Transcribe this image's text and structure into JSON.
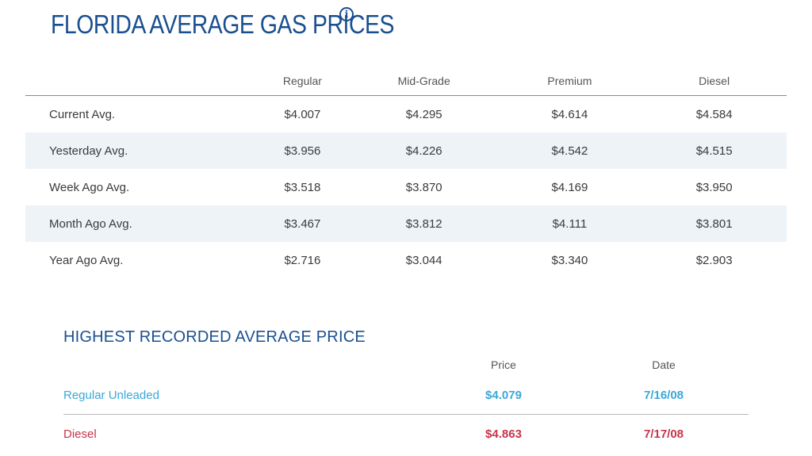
{
  "header": {
    "title": "FLORIDA AVERAGE GAS PRICES",
    "info_icon": "info-icon"
  },
  "prices_table": {
    "columns": [
      "",
      "Regular",
      "Mid-Grade",
      "Premium",
      "Diesel"
    ],
    "rows": [
      {
        "label": "Current Avg.",
        "values": [
          "$4.007",
          "$4.295",
          "$4.614",
          "$4.584"
        ]
      },
      {
        "label": "Yesterday Avg.",
        "values": [
          "$3.956",
          "$4.226",
          "$4.542",
          "$4.515"
        ]
      },
      {
        "label": "Week Ago Avg.",
        "values": [
          "$3.518",
          "$3.870",
          "$4.169",
          "$3.950"
        ]
      },
      {
        "label": "Month Ago Avg.",
        "values": [
          "$3.467",
          "$3.812",
          "$4.111",
          "$3.801"
        ]
      },
      {
        "label": "Year Ago Avg.",
        "values": [
          "$2.716",
          "$3.044",
          "$3.340",
          "$2.903"
        ]
      }
    ],
    "stripe_color": "#eef3f8"
  },
  "highest_recorded": {
    "title": "HIGHEST RECORDED AVERAGE PRICE",
    "columns": [
      "",
      "Price",
      "Date"
    ],
    "rows": [
      {
        "label": "Regular Unleaded",
        "price": "$4.079",
        "date": "7/16/08",
        "color": "#3aa8d8"
      },
      {
        "label": "Diesel",
        "price": "$4.863",
        "date": "7/17/08",
        "color": "#c8344a"
      }
    ]
  },
  "colors": {
    "title": "#1a4f8f",
    "text": "#3a3a3a"
  }
}
